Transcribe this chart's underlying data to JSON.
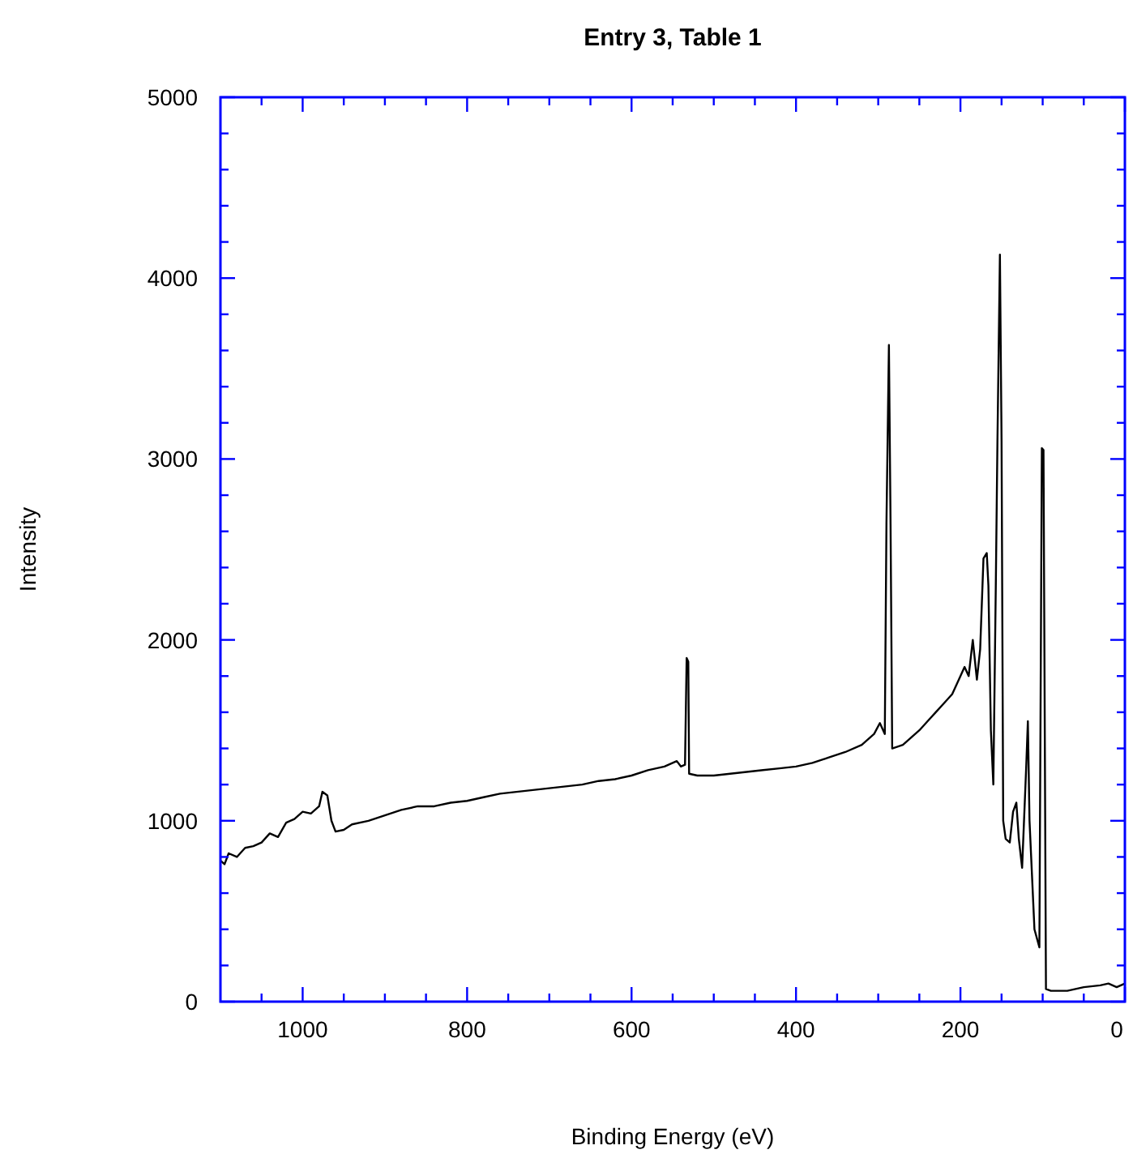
{
  "chart_data": {
    "type": "line",
    "title": "Entry 3, Table 1",
    "xlabel": "Binding Energy (eV)",
    "ylabel": "Intensity",
    "xlim": [
      1100,
      0
    ],
    "ylim": [
      0,
      5000
    ],
    "xticks": [
      {
        "value": 1050,
        "label": null
      },
      1000,
      {
        "value": 950,
        "label": null
      },
      {
        "value": 900,
        "label": null
      },
      {
        "value": 850,
        "label": null
      },
      800,
      {
        "value": 750,
        "label": null
      },
      {
        "value": 700,
        "label": null
      },
      {
        "value": 650,
        "label": null
      },
      600,
      {
        "value": 550,
        "label": null
      },
      {
        "value": 500,
        "label": null
      },
      {
        "value": 450,
        "label": null
      },
      400,
      {
        "value": 350,
        "label": null
      },
      {
        "value": 300,
        "label": null
      },
      {
        "value": 250,
        "label": null
      },
      200,
      {
        "value": 150,
        "label": null
      },
      {
        "value": 100,
        "label": null
      },
      {
        "value": 50,
        "label": null
      },
      0
    ],
    "yticks": [
      0,
      {
        "value": 200,
        "label": null
      },
      {
        "value": 400,
        "label": null
      },
      {
        "value": 600,
        "label": null
      },
      {
        "value": 800,
        "label": null
      },
      1000,
      {
        "value": 1200,
        "label": null
      },
      {
        "value": 1400,
        "label": null
      },
      {
        "value": 1600,
        "label": null
      },
      {
        "value": 1800,
        "label": null
      },
      2000,
      {
        "value": 2200,
        "label": null
      },
      {
        "value": 2400,
        "label": null
      },
      {
        "value": 2600,
        "label": null
      },
      {
        "value": 2800,
        "label": null
      },
      3000,
      {
        "value": 3200,
        "label": null
      },
      {
        "value": 3400,
        "label": null
      },
      {
        "value": 3600,
        "label": null
      },
      {
        "value": 3800,
        "label": null
      },
      4000,
      {
        "value": 4200,
        "label": null
      },
      {
        "value": 4400,
        "label": null
      },
      {
        "value": 4600,
        "label": null
      },
      {
        "value": 4800,
        "label": null
      },
      5000
    ],
    "marker": "none",
    "line_style": "solid",
    "series": [
      {
        "color": "#000000",
        "x": [
          1100,
          1095,
          1090,
          1080,
          1070,
          1060,
          1050,
          1040,
          1030,
          1020,
          1010,
          1000,
          990,
          980,
          976,
          970,
          965,
          960,
          950,
          940,
          920,
          900,
          880,
          860,
          840,
          820,
          800,
          780,
          760,
          740,
          720,
          700,
          680,
          660,
          640,
          620,
          600,
          580,
          560,
          545,
          540,
          535,
          533,
          531,
          530,
          520,
          500,
          480,
          460,
          440,
          420,
          400,
          380,
          360,
          340,
          320,
          305,
          298,
          292,
          290,
          287,
          285,
          283,
          270,
          260,
          250,
          240,
          230,
          220,
          210,
          200,
          195,
          190,
          185,
          180,
          176,
          172,
          168,
          166,
          163,
          160,
          157,
          155,
          152,
          150,
          148,
          145,
          140,
          136,
          132,
          129,
          125,
          120,
          118,
          116,
          110,
          104,
          101,
          99,
          96,
          90,
          70,
          50,
          30,
          20,
          10,
          0
        ],
        "values": [
          780,
          760,
          820,
          800,
          850,
          860,
          880,
          930,
          910,
          990,
          1010,
          1050,
          1040,
          1080,
          1160,
          1140,
          1000,
          940,
          950,
          980,
          1000,
          1030,
          1060,
          1080,
          1080,
          1100,
          1110,
          1130,
          1150,
          1160,
          1170,
          1180,
          1190,
          1200,
          1220,
          1230,
          1250,
          1280,
          1300,
          1330,
          1300,
          1310,
          1900,
          1880,
          1260,
          1250,
          1250,
          1260,
          1270,
          1280,
          1290,
          1300,
          1320,
          1350,
          1380,
          1420,
          1480,
          1540,
          1480,
          2640,
          3630,
          2640,
          1400,
          1420,
          1460,
          1500,
          1550,
          1600,
          1650,
          1700,
          1800,
          1850,
          1800,
          2000,
          1780,
          1950,
          2450,
          2480,
          2300,
          1500,
          1200,
          2300,
          3100,
          4130,
          3100,
          1000,
          900,
          880,
          1050,
          1100,
          900,
          740,
          1300,
          1550,
          1000,
          400,
          300,
          3060,
          3050,
          70,
          60,
          60,
          80,
          90,
          100,
          80,
          100
        ]
      }
    ]
  }
}
